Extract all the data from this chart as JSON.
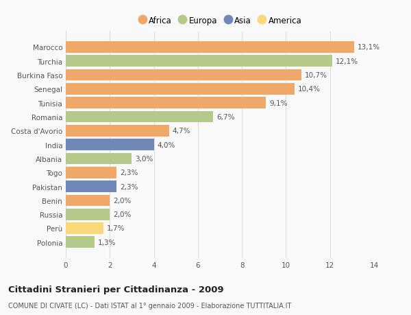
{
  "categories": [
    "Marocco",
    "Turchia",
    "Burkina Faso",
    "Senegal",
    "Tunisia",
    "Romania",
    "Costa d'Avorio",
    "India",
    "Albania",
    "Togo",
    "Pakistan",
    "Benin",
    "Russia",
    "Perù",
    "Polonia"
  ],
  "values": [
    13.1,
    12.1,
    10.7,
    10.4,
    9.1,
    6.7,
    4.7,
    4.0,
    3.0,
    2.3,
    2.3,
    2.0,
    2.0,
    1.7,
    1.3
  ],
  "labels": [
    "13,1%",
    "12,1%",
    "10,7%",
    "10,4%",
    "9,1%",
    "6,7%",
    "4,7%",
    "4,0%",
    "3,0%",
    "2,3%",
    "2,3%",
    "2,0%",
    "2,0%",
    "1,7%",
    "1,3%"
  ],
  "colors": [
    "#f0a868",
    "#b5c98a",
    "#f0a868",
    "#f0a868",
    "#f0a868",
    "#b5c98a",
    "#f0a868",
    "#7088b8",
    "#b5c98a",
    "#f0a868",
    "#7088b8",
    "#f0a868",
    "#b5c98a",
    "#f8d878",
    "#b5c98a"
  ],
  "legend_labels": [
    "Africa",
    "Europa",
    "Asia",
    "America"
  ],
  "legend_colors": [
    "#f0a868",
    "#b5c98a",
    "#7088b8",
    "#f8d878"
  ],
  "title": "Cittadini Stranieri per Cittadinanza - 2009",
  "subtitle": "COMUNE DI CIVATE (LC) - Dati ISTAT al 1° gennaio 2009 - Elaborazione TUTTITALIA.IT",
  "xlim": [
    0,
    14
  ],
  "xticks": [
    0,
    2,
    4,
    6,
    8,
    10,
    12,
    14
  ],
  "bg_color": "#f9f9f9",
  "grid_color": "#dddddd",
  "bar_height": 0.82,
  "label_fontsize": 7.5,
  "tick_fontsize": 7.5,
  "title_fontsize": 9.5,
  "subtitle_fontsize": 7.0,
  "legend_fontsize": 8.5
}
